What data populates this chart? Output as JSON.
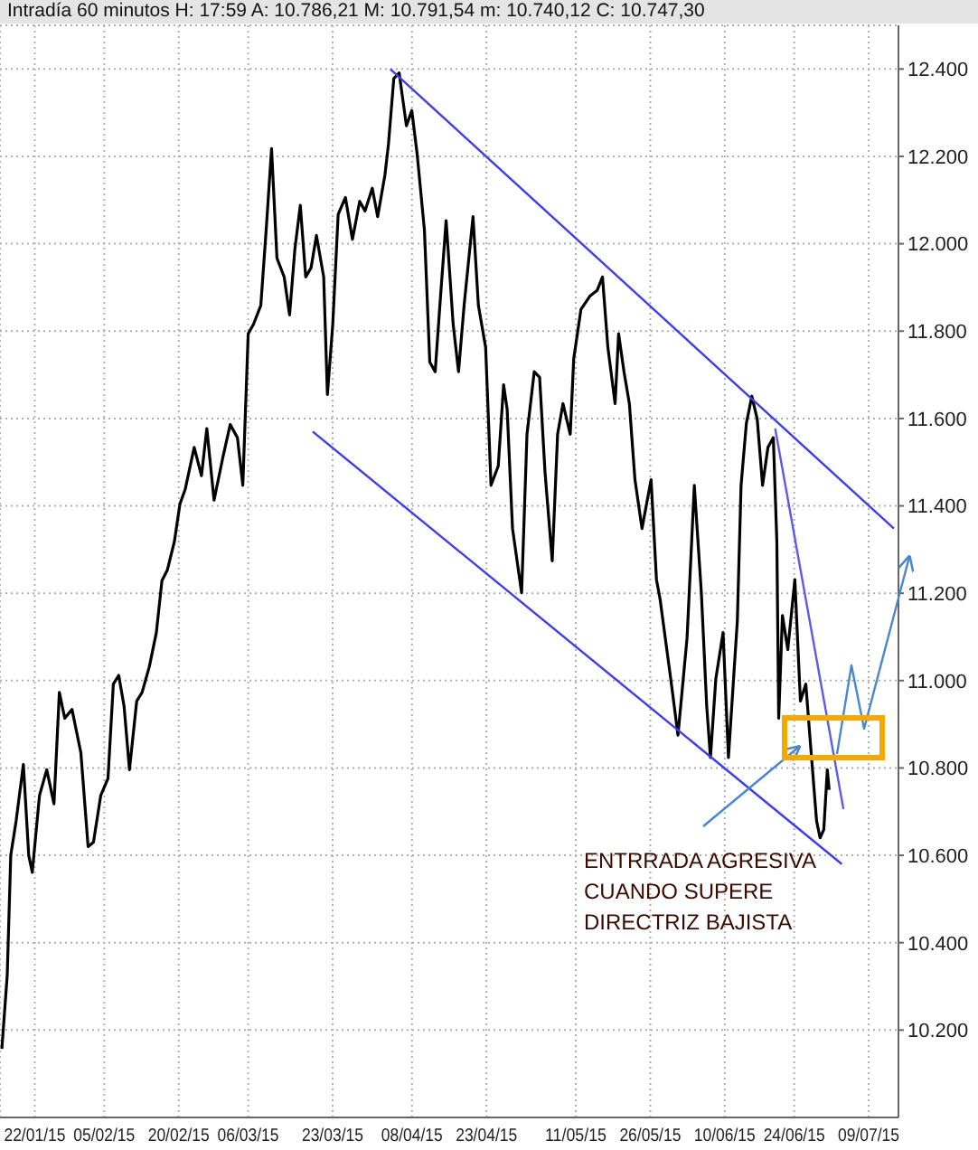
{
  "chart_data": {
    "type": "line",
    "title": "Intradía 60 minutos H: 17:59 A: 10.786,21 M: 10.791,54 m: 10.740,12 C: 10.747,30",
    "xlim": [
      "2015-01-15",
      "2015-07-15"
    ],
    "xticks": [
      {
        "value": "2015-01-22",
        "label": "22/01/15"
      },
      {
        "value": "2015-02-05",
        "label": "05/02/15"
      },
      {
        "value": "2015-02-20",
        "label": "20/02/15"
      },
      {
        "value": "2015-03-06",
        "label": "06/03/15"
      },
      {
        "value": "2015-03-23",
        "label": "23/03/15"
      },
      {
        "value": "2015-04-08",
        "label": "08/04/15"
      },
      {
        "value": "2015-04-23",
        "label": "23/04/15"
      },
      {
        "value": "2015-05-11",
        "label": "11/05/15"
      },
      {
        "value": "2015-05-26",
        "label": "26/05/15"
      },
      {
        "value": "2015-06-10",
        "label": "10/06/15"
      },
      {
        "value": "2015-06-24",
        "label": "24/06/15"
      },
      {
        "value": "2015-07-09",
        "label": "09/07/15"
      }
    ],
    "ylim": [
      10000,
      12500
    ],
    "yticks": [
      {
        "value": 10200,
        "label": "10.200"
      },
      {
        "value": 10400,
        "label": "10.400"
      },
      {
        "value": 10600,
        "label": "10.600"
      },
      {
        "value": 10800,
        "label": "10.800"
      },
      {
        "value": 11000,
        "label": "11.000"
      },
      {
        "value": 11200,
        "label": "11.200"
      },
      {
        "value": 11400,
        "label": "11.400"
      },
      {
        "value": 11600,
        "label": "11.600"
      },
      {
        "value": 11800,
        "label": "11.800"
      },
      {
        "value": 12000,
        "label": "12.000"
      },
      {
        "value": 12200,
        "label": "12.200"
      },
      {
        "value": 12400,
        "label": "12.400"
      }
    ],
    "grid": true,
    "series": [
      {
        "color": "#000000",
        "x": [
          "2015-01-15T09:00",
          "2015-01-16T11:00",
          "2015-01-16T19:00",
          "2015-01-17T04:00",
          "2015-01-18T06:00",
          "2015-01-19T17:00",
          "2015-01-20T19:00",
          "2015-01-21T12:00",
          "2015-01-22T23:00",
          "2015-01-24T10:00",
          "2015-01-25T21:00",
          "2015-01-26T23:00",
          "2015-01-28T01:00",
          "2015-01-29T12:00",
          "2015-01-31T07:00",
          "2015-02-01T18:00",
          "2015-02-02T20:00",
          "2015-02-04T07:00",
          "2015-02-05T18:00",
          "2015-02-06T20:00",
          "2015-02-07T22:00",
          "2015-02-09T00:00",
          "2015-02-10T02:00",
          "2015-02-11T13:00",
          "2015-02-12T15:00",
          "2015-02-14T02:00",
          "2015-02-15T12:00",
          "2015-02-16T15:00",
          "2015-02-17T17:00",
          "2015-02-19T03:00",
          "2015-02-20T06:00",
          "2015-02-21T08:00",
          "2015-02-23T03:00",
          "2015-02-24T14:00",
          "2015-02-25T16:00",
          "2015-02-27T03:00",
          "2015-02-28T22:00",
          "2015-03-02T09:00",
          "2015-03-03T20:00",
          "2015-03-04T22:00",
          "2015-03-06T00:00",
          "2015-03-07T02:00",
          "2015-03-08T13:00",
          "2015-03-09T15:00",
          "2015-03-10T17:00",
          "2015-03-11T19:00",
          "2015-03-13T06:00",
          "2015-03-14T08:00",
          "2015-03-15T10:00",
          "2015-03-16T12:00",
          "2015-03-17T14:00",
          "2015-03-18T16:00",
          "2015-03-19T18:00",
          "2015-03-21T05:00",
          "2015-03-21T23:00",
          "2015-03-23T01:00",
          "2015-03-24T03:00",
          "2015-03-25T14:00",
          "2015-03-27T00:00",
          "2015-03-28T11:00",
          "2015-03-29T13:00",
          "2015-03-31T00:00",
          "2015-04-01T02:00",
          "2015-04-02T13:00",
          "2015-04-03T06:00",
          "2015-04-04T08:00",
          "2015-04-05T10:00",
          "2015-04-06T21:00",
          "2015-04-07T23:00",
          "2015-04-09T01:00",
          "2015-04-10T12:00",
          "2015-04-11T14:00",
          "2015-04-12T16:00",
          "2015-04-13T18:00",
          "2015-04-14T21:00",
          "2015-04-16T07:00",
          "2015-04-17T09:00",
          "2015-04-18T12:00",
          "2015-04-20T07:00",
          "2015-04-21T09:00",
          "2015-04-22T20:00",
          "2015-04-23T22:00",
          "2015-04-25T09:00",
          "2015-04-26T11:00",
          "2015-04-27T04:00",
          "2015-04-28T06:00",
          "2015-04-30T02:00",
          "2015-05-01T04:00",
          "2015-05-02T15:00",
          "2015-05-03T17:00",
          "2015-05-04T19:00",
          "2015-05-06T06:00",
          "2015-05-07T08:00",
          "2015-05-08T10:00",
          "2015-05-09T21:00",
          "2015-05-10T14:00",
          "2015-05-12T01:00",
          "2015-05-13T20:00",
          "2015-05-15T07:00",
          "2015-05-16T09:00",
          "2015-05-17T11:00",
          "2015-05-18T22:00",
          "2015-05-19T15:00",
          "2015-05-20T17:00",
          "2015-05-21T19:00",
          "2015-05-22T22:00",
          "2015-05-24T08:00",
          "2015-05-26T04:00",
          "2015-05-27T06:00",
          "2015-05-27T23:00",
          "2015-05-30T03:00",
          "2015-05-31T14:00",
          "2015-06-02T10:00",
          "2015-06-03T21:00",
          "2015-06-05T07:00",
          "2015-06-06T09:00",
          "2015-06-07T03:00",
          "2015-06-08T05:00",
          "2015-06-09T16:00",
          "2015-06-10T18:00",
          "2015-06-12T13:00",
          "2015-06-13T07:00",
          "2015-06-14T09:00",
          "2015-06-15T11:00",
          "2015-06-16T13:00",
          "2015-06-17T15:00",
          "2015-06-18T17:00",
          "2015-06-19T19:00",
          "2015-06-20T12:00",
          "2015-06-20T21:00",
          "2015-06-21T15:00",
          "2015-06-22T17:00",
          "2015-06-24T03:00",
          "2015-06-25T06:00",
          "2015-06-26T08:00",
          "2015-06-27T10:00",
          "2015-06-28T12:00",
          "2015-06-29T05:00",
          "2015-06-29T23:00",
          "2015-06-30T16:00",
          "2015-07-01T01:00"
        ],
        "values": [
          10157,
          10326,
          10455,
          10600,
          10679,
          10808,
          10600,
          10561,
          10737,
          10796,
          10718,
          10973,
          10914,
          10934,
          10835,
          10620,
          10630,
          10737,
          10776,
          10992,
          11012,
          10941,
          10796,
          10953,
          10973,
          11032,
          11110,
          11229,
          11253,
          11318,
          11404,
          11439,
          11534,
          11469,
          11577,
          11413,
          11512,
          11586,
          11556,
          11447,
          11794,
          11816,
          11859,
          12032,
          12218,
          11967,
          11924,
          11837,
          11989,
          12088,
          11924,
          11945,
          12019,
          11924,
          11655,
          11816,
          12067,
          12106,
          12010,
          12097,
          12075,
          12127,
          12062,
          12157,
          12227,
          12378,
          12391,
          12270,
          12305,
          12205,
          12032,
          11729,
          11707,
          11880,
          12053,
          11816,
          11707,
          11859,
          12062,
          11859,
          11763,
          11447,
          11491,
          11677,
          11621,
          11348,
          11201,
          11564,
          11707,
          11694,
          11478,
          11274,
          11564,
          11634,
          11564,
          11737,
          11850,
          11880,
          11893,
          11924,
          11763,
          11634,
          11794,
          11707,
          11634,
          11460,
          11348,
          11460,
          11231,
          11188,
          11004,
          10875,
          11098,
          11447,
          11201,
          10941,
          10824,
          11004,
          11110,
          10824,
          11137,
          11447,
          11590,
          11651,
          11599,
          11447,
          11534,
          11556,
          11318,
          10914,
          11149,
          11071,
          11231,
          10953,
          10992,
          10835,
          10679,
          10640,
          10659,
          10796,
          10750
        ]
      },
      {
        "type": "line",
        "color": "#3c3cf0",
        "x": [
          "2015-04-03T15:00",
          "2015-07-14T02:00"
        ],
        "values": [
          12400,
          11348
        ]
      },
      {
        "type": "line",
        "color": "#3c3cf0",
        "x": [
          "2015-03-19T00:00",
          "2015-07-03T14:00"
        ],
        "values": [
          11570,
          10580
        ]
      },
      {
        "type": "line",
        "color": "#5a5af0",
        "x": [
          "2015-06-20T04:00",
          "2015-07-03T22:00"
        ],
        "values": [
          11577,
          10706
        ]
      }
    ],
    "annotations": [
      "ENTRRADA AGRESIVA\nCUANDO SUPERE\nDIRECTRIZ BAJISTA"
    ]
  }
}
